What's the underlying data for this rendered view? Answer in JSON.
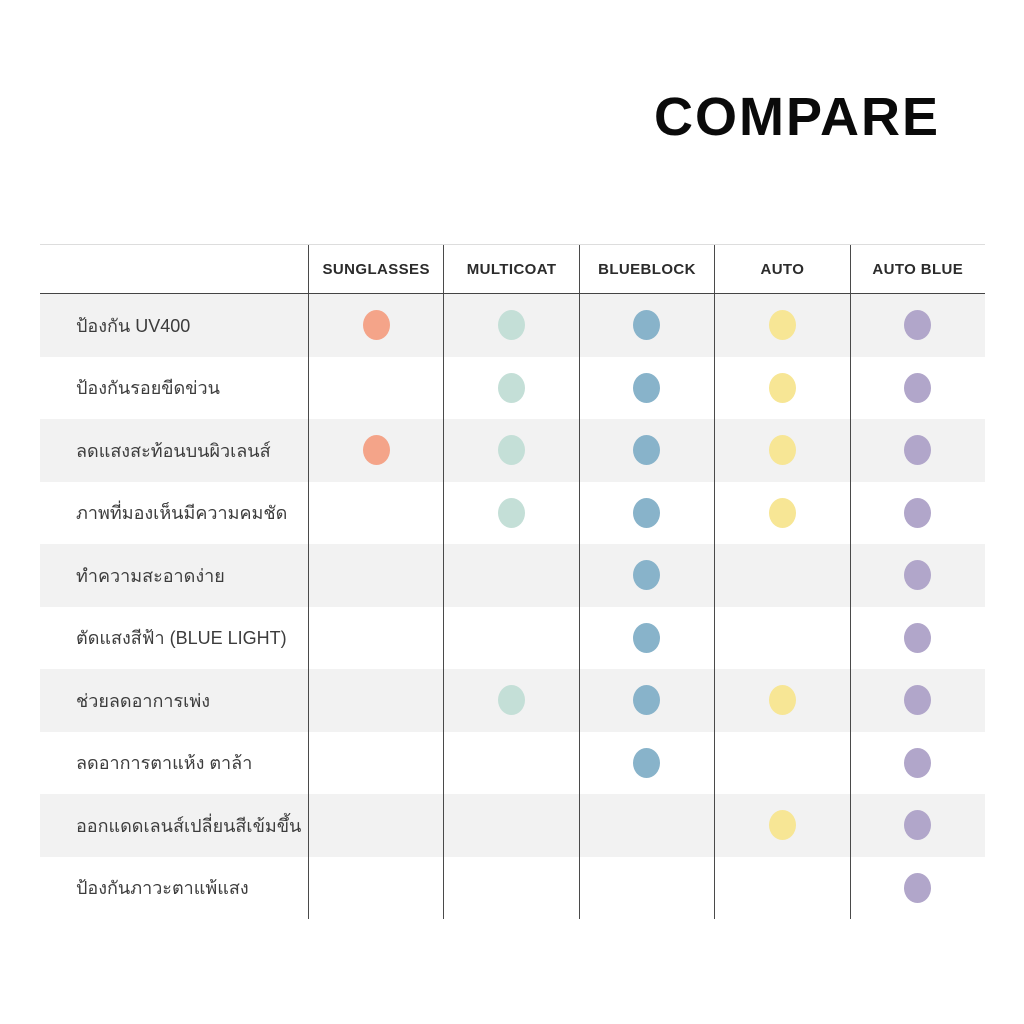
{
  "title": "COMPARE",
  "colors": {
    "background": "#ffffff",
    "stripe": "#f2f2f2",
    "grid_line": "#4a4a4a",
    "top_line": "#dddddd",
    "header_text": "#2b2b2b",
    "label_text": "#3c3c3c"
  },
  "chart_data": {
    "type": "table",
    "title": "COMPARE",
    "legend_position": "none",
    "grid": "vertical column lines with zebra-striped rows",
    "columns": [
      {
        "label": "SUNGLASSES",
        "dot_color": "#F4A489",
        "dot_name": "orange-dot"
      },
      {
        "label": "MULTICOAT",
        "dot_color": "#C4DFD7",
        "dot_name": "mint-dot"
      },
      {
        "label": "BLUEBLOCK",
        "dot_color": "#88B3CA",
        "dot_name": "blue-dot"
      },
      {
        "label": "AUTO",
        "dot_color": "#F7E695",
        "dot_name": "yellow-dot"
      },
      {
        "label": "AUTO BLUE",
        "dot_color": "#B1A6CA",
        "dot_name": "purple-dot"
      }
    ],
    "rows": [
      {
        "label": "ป้องกัน  UV400",
        "dots": [
          true,
          true,
          true,
          true,
          true
        ]
      },
      {
        "label": "ป้องกันรอยขีดข่วน",
        "dots": [
          false,
          true,
          true,
          true,
          true
        ]
      },
      {
        "label": "ลดแสงสะท้อนบนผิวเลนส์",
        "dots": [
          true,
          true,
          true,
          true,
          true
        ]
      },
      {
        "label": "ภาพที่มองเห็นมีความคมชัด",
        "dots": [
          false,
          true,
          true,
          true,
          true
        ]
      },
      {
        "label": "ทำความสะอาดง่าย",
        "dots": [
          false,
          false,
          true,
          false,
          true
        ]
      },
      {
        "label": "ตัดแสงสีฟ้า (BLUE LIGHT)",
        "dots": [
          false,
          false,
          true,
          false,
          true
        ]
      },
      {
        "label": "ช่วยลดอาการเพ่ง",
        "dots": [
          false,
          true,
          true,
          true,
          true
        ]
      },
      {
        "label": "ลดอาการตาแห้ง ตาล้า",
        "dots": [
          false,
          false,
          true,
          false,
          true
        ]
      },
      {
        "label": "ออกแดดเลนส์เปลี่ยนสีเข้มขึ้น",
        "dots": [
          false,
          false,
          false,
          true,
          true
        ]
      },
      {
        "label": "ป้องกันภาวะตาแพ้แสง",
        "dots": [
          false,
          false,
          false,
          false,
          true
        ]
      }
    ]
  }
}
